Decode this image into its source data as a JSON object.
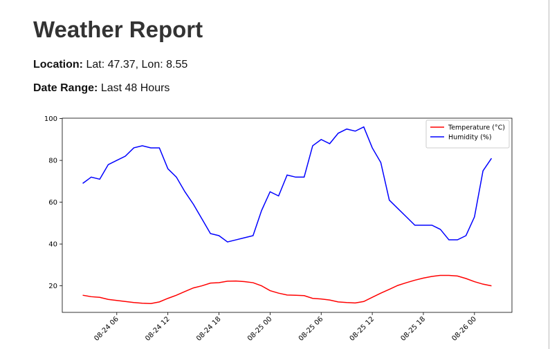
{
  "header": {
    "title": "Weather Report"
  },
  "location": {
    "label": "Location:",
    "value": "Lat: 47.37, Lon: 8.55"
  },
  "date_range": {
    "label": "Date Range:",
    "value": "Last 48 Hours"
  },
  "chart_data": {
    "type": "line",
    "x": [
      "08-24 02",
      "08-24 03",
      "08-24 04",
      "08-24 05",
      "08-24 06",
      "08-24 07",
      "08-24 08",
      "08-24 09",
      "08-24 10",
      "08-24 11",
      "08-24 12",
      "08-24 13",
      "08-24 14",
      "08-24 15",
      "08-24 16",
      "08-24 17",
      "08-24 18",
      "08-24 19",
      "08-24 20",
      "08-24 21",
      "08-24 22",
      "08-24 23",
      "08-25 00",
      "08-25 01",
      "08-25 02",
      "08-25 03",
      "08-25 04",
      "08-25 05",
      "08-25 06",
      "08-25 07",
      "08-25 08",
      "08-25 09",
      "08-25 10",
      "08-25 11",
      "08-25 12",
      "08-25 13",
      "08-25 14",
      "08-25 15",
      "08-25 16",
      "08-25 17",
      "08-25 18",
      "08-25 19",
      "08-25 20",
      "08-25 21",
      "08-25 22",
      "08-25 23",
      "08-26 00",
      "08-26 01",
      "08-26 02"
    ],
    "series": [
      {
        "name": "Temperature (°C)",
        "color": "#ff0000",
        "values": [
          15.5,
          14.8,
          14.5,
          13.5,
          13,
          12.5,
          12,
          11.7,
          11.5,
          12.3,
          14,
          15.5,
          17.3,
          19,
          20,
          21.3,
          21.5,
          22.2,
          22.3,
          22,
          21.5,
          20,
          17.7,
          16.5,
          15.6,
          15.5,
          15.3,
          14,
          13.7,
          13.2,
          12.3,
          12,
          11.8,
          12.5,
          14.5,
          16.5,
          18.3,
          20.2,
          21.5,
          22.7,
          23.7,
          24.5,
          25,
          25,
          24.7,
          23.5,
          22,
          20.8,
          20
        ]
      },
      {
        "name": "Humidity (%)",
        "color": "#0000ff",
        "values": [
          69,
          72,
          71,
          78,
          80,
          82,
          86,
          87,
          86,
          86,
          76,
          72,
          65,
          59,
          52,
          45,
          44,
          41,
          42,
          43,
          44,
          56,
          65,
          63,
          73,
          72,
          72,
          87,
          90,
          88,
          93,
          95,
          94,
          96,
          86,
          79,
          61,
          57,
          53,
          49,
          49,
          49,
          47,
          42,
          42,
          44,
          53,
          75,
          81
        ]
      }
    ],
    "xlim": [
      "08-23 23:36",
      "08-26 04:24"
    ],
    "xticks": [
      "08-24 06",
      "08-24 12",
      "08-24 18",
      "08-25 00",
      "08-25 06",
      "08-25 12",
      "08-25 18",
      "08-26 00"
    ],
    "ylim": [
      7.3,
      100.2
    ],
    "yticks": [
      20,
      40,
      60,
      80,
      100
    ],
    "legend": "upper right"
  }
}
